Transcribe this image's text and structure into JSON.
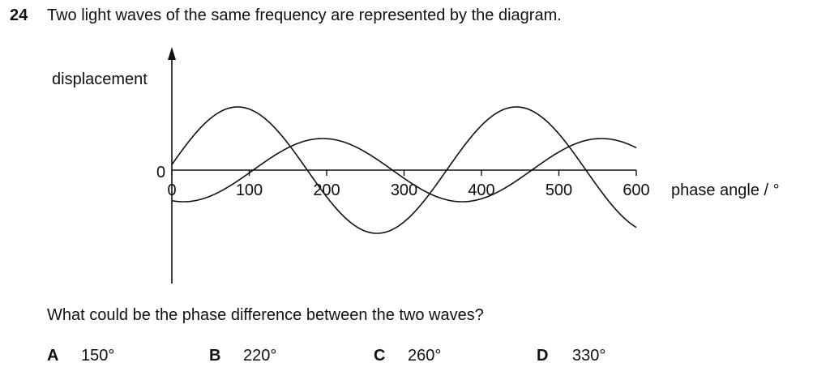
{
  "question": {
    "number": "24",
    "text": "Two light waves of the same frequency are represented by the diagram.",
    "prompt": "What could be the phase difference between the two waves?"
  },
  "options": [
    {
      "letter": "A",
      "value": "150°"
    },
    {
      "letter": "B",
      "value": "220°"
    },
    {
      "letter": "C",
      "value": "260°"
    },
    {
      "letter": "D",
      "value": "330°"
    }
  ],
  "chart_data": {
    "type": "line",
    "xlabel": "phase angle / °",
    "ylabel": "displacement",
    "y_zero_label": "0",
    "xlim": [
      0,
      600
    ],
    "x_ticks": [
      0,
      100,
      200,
      300,
      400,
      500,
      600
    ],
    "x_tick_labels": [
      "0",
      "100",
      "200",
      "300",
      "400",
      "500",
      "600"
    ],
    "series": [
      {
        "amplitude": 1.0,
        "wavelength": 360,
        "zero_crossing_up": -5,
        "x_range": [
          0,
          600
        ]
      },
      {
        "amplitude": 0.5,
        "wavelength": 360,
        "zero_crossing_up": 105,
        "x_range": [
          0,
          600
        ]
      }
    ]
  }
}
